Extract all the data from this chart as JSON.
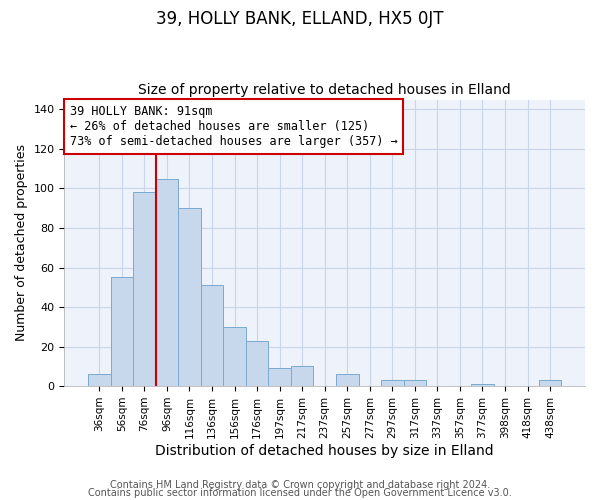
{
  "title": "39, HOLLY BANK, ELLAND, HX5 0JT",
  "subtitle": "Size of property relative to detached houses in Elland",
  "xlabel": "Distribution of detached houses by size in Elland",
  "ylabel": "Number of detached properties",
  "bar_labels": [
    "36sqm",
    "56sqm",
    "76sqm",
    "96sqm",
    "116sqm",
    "136sqm",
    "156sqm",
    "176sqm",
    "197sqm",
    "217sqm",
    "237sqm",
    "257sqm",
    "277sqm",
    "297sqm",
    "317sqm",
    "337sqm",
    "357sqm",
    "377sqm",
    "398sqm",
    "418sqm",
    "438sqm"
  ],
  "bar_values": [
    6,
    55,
    98,
    105,
    90,
    51,
    30,
    23,
    9,
    10,
    0,
    6,
    0,
    3,
    3,
    0,
    0,
    1,
    0,
    0,
    3
  ],
  "bar_color": "#c8d8ec",
  "bar_edgecolor": "#7aaad0",
  "bar_linewidth": 0.7,
  "vline_color": "#cc0000",
  "ylim": [
    0,
    145
  ],
  "yticks": [
    0,
    20,
    40,
    60,
    80,
    100,
    120,
    140
  ],
  "annotation_text": "39 HOLLY BANK: 91sqm\n← 26% of detached houses are smaller (125)\n73% of semi-detached houses are larger (357) →",
  "annotation_box_color": "#ffffff",
  "annotation_box_edgecolor": "#cc0000",
  "annotation_fontsize": 8.5,
  "footer1": "Contains HM Land Registry data © Crown copyright and database right 2024.",
  "footer2": "Contains public sector information licensed under the Open Government Licence v3.0.",
  "title_fontsize": 12,
  "subtitle_fontsize": 10,
  "xlabel_fontsize": 10,
  "ylabel_fontsize": 9,
  "footer_fontsize": 7,
  "grid_color": "#c8d4e8",
  "background_color": "#ffffff",
  "plot_bg_color": "#eef2fa"
}
